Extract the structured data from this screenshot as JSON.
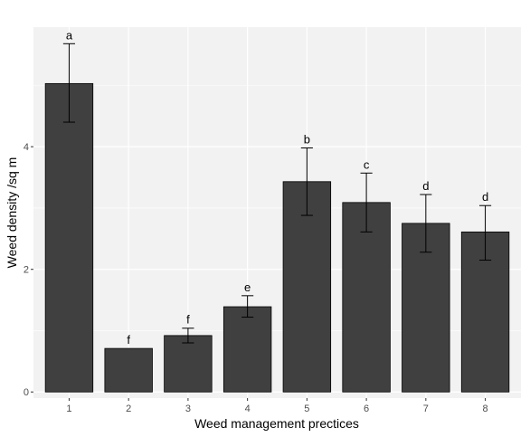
{
  "chart_data": {
    "type": "bar",
    "title": "",
    "xlabel": "Weed management prectices",
    "ylabel": "Weed density /sq m",
    "categories": [
      "1",
      "2",
      "3",
      "4",
      "5",
      "6",
      "7",
      "8"
    ],
    "values": [
      5.03,
      0.71,
      0.92,
      1.39,
      3.43,
      3.09,
      2.75,
      2.61
    ],
    "error_low": [
      4.4,
      0.71,
      0.8,
      1.22,
      2.88,
      2.61,
      2.28,
      2.15
    ],
    "error_high": [
      5.68,
      0.71,
      1.04,
      1.57,
      3.98,
      3.57,
      3.22,
      3.04
    ],
    "significance_labels": [
      "a",
      "f",
      "f",
      "e",
      "b",
      "c",
      "d",
      "d"
    ],
    "ylim": [
      -0.1,
      5.95
    ],
    "yticks": [
      0,
      2,
      4
    ],
    "grid": true,
    "colors": {
      "panel": "#f2f2f2",
      "grid_major": "#ffffff",
      "bar_fill": "#404040",
      "bar_stroke": "#000000",
      "error_bar": "#000000"
    }
  }
}
